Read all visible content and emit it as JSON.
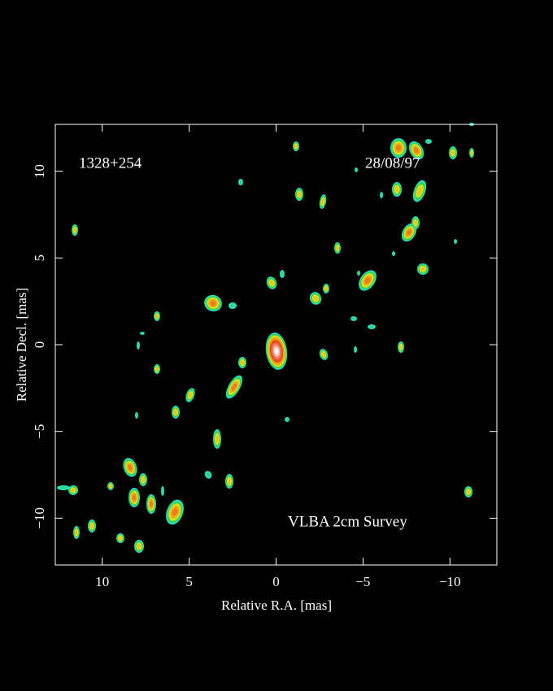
{
  "chart_data": {
    "type": "image",
    "source": "1328+254",
    "date": "28/08/97",
    "annotation": "VLBA 2cm Survey",
    "x_label": "Relative R.A. [mas]",
    "y_label": "Relative Decl. [mas]",
    "xlim": [
      12.7,
      -12.7
    ],
    "ylim": [
      -12.7,
      12.7
    ],
    "xticks": [
      10,
      5,
      0,
      {
        "value": -5,
        "label": "−5"
      },
      {
        "value": -10,
        "label": "−10"
      }
    ],
    "yticks": [
      {
        "value": -10,
        "label": "−10"
      },
      {
        "value": -5,
        "label": "−5"
      },
      0,
      5,
      10
    ]
  }
}
